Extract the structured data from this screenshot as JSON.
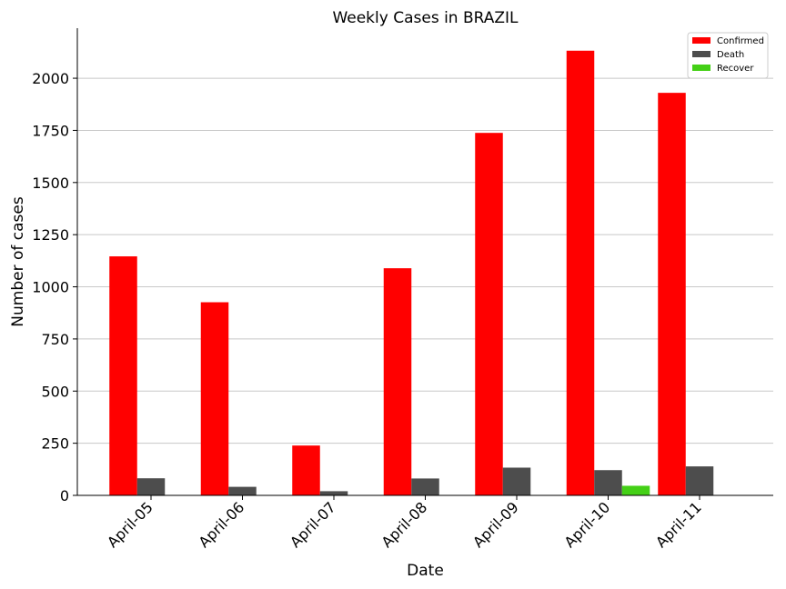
{
  "chart_data": {
    "type": "bar",
    "title": "Weekly Cases in BRAZIL",
    "xlabel": "Date",
    "ylabel": "Number of cases",
    "categories": [
      "April-05",
      "April-06",
      "April-07",
      "April-08",
      "April-09",
      "April-10",
      "April-11"
    ],
    "series": [
      {
        "name": "Confirmed",
        "color": "#ff0000",
        "values": [
          1146,
          926,
          239,
          1089,
          1738,
          2132,
          1930
        ]
      },
      {
        "name": "Death",
        "color": "#4d4d4d",
        "values": [
          82,
          41,
          20,
          81,
          133,
          121,
          139
        ]
      },
      {
        "name": "Recover",
        "color": "#44d016",
        "values": [
          0,
          0,
          0,
          0,
          0,
          46,
          0
        ]
      }
    ],
    "ylim": [
      0,
      2240
    ],
    "yticks": [
      0,
      250,
      500,
      750,
      1000,
      1250,
      1500,
      1750,
      2000
    ],
    "grid": "horizontal",
    "legend_position": "top-right"
  }
}
